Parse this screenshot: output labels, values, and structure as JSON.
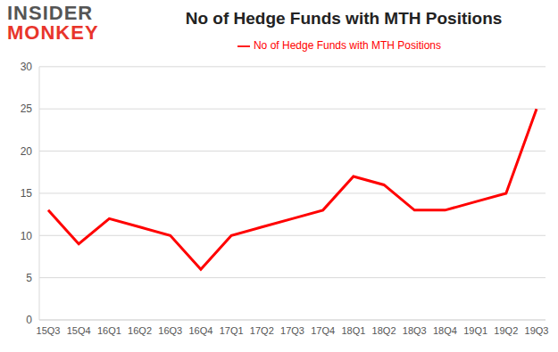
{
  "chart_data": {
    "type": "line",
    "title": "No of Hedge Funds with MTH Positions",
    "annotations": [
      "INSIDER",
      "MONKEY"
    ],
    "categories": [
      "15Q3",
      "15Q4",
      "16Q1",
      "16Q2",
      "16Q3",
      "16Q4",
      "17Q1",
      "17Q2",
      "17Q3",
      "17Q4",
      "18Q1",
      "18Q2",
      "18Q3",
      "18Q4",
      "19Q1",
      "19Q2",
      "19Q3"
    ],
    "series": [
      {
        "name": "No of Hedge Funds with MTH Positions",
        "color": "#ff0000",
        "values": [
          13,
          9,
          12,
          11,
          10,
          6,
          10,
          11,
          12,
          13,
          17,
          16,
          13,
          13,
          14,
          15,
          25
        ]
      }
    ],
    "ylim": [
      0,
      30
    ],
    "yticks": [
      0,
      5,
      10,
      15,
      20,
      25,
      30
    ],
    "grid": true,
    "legend": "top"
  }
}
